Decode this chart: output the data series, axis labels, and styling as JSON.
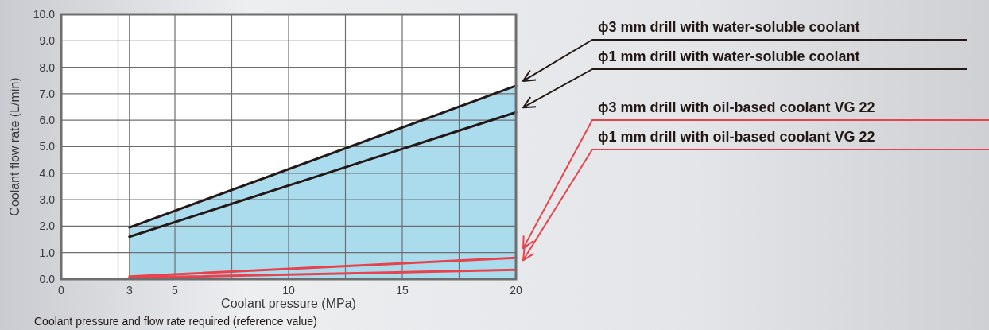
{
  "chart_data": {
    "type": "line",
    "xlabel": "Coolant pressure (MPa)",
    "ylabel": "Coolant flow rate (L/min)",
    "annotations": [
      "Coolant pressure and flow rate required (reference value)"
    ],
    "xlim": [
      0,
      20
    ],
    "ylim": [
      0,
      10
    ],
    "xticks": [
      0,
      {
        "value": 2.5,
        "label": null
      },
      3,
      5,
      {
        "value": 7.5,
        "label": null
      },
      10,
      {
        "value": 12.5,
        "label": null
      },
      15,
      {
        "value": 17.5,
        "label": null
      },
      20
    ],
    "yticks": [
      {
        "value": 0,
        "label": "0.0"
      },
      {
        "value": 1,
        "label": "1.0"
      },
      {
        "value": 2,
        "label": "2.0"
      },
      {
        "value": 3,
        "label": "3.0"
      },
      {
        "value": 4,
        "label": "4.0"
      },
      {
        "value": 5,
        "label": "5.0"
      },
      {
        "value": 6,
        "label": "6.0"
      },
      {
        "value": 7,
        "label": "7.0"
      },
      {
        "value": 8,
        "label": "8.0"
      },
      {
        "value": 9,
        "label": "9.0"
      },
      {
        "value": 10,
        "label": "10.0"
      }
    ],
    "grid": true,
    "legend": "right",
    "line_style": "solid",
    "x": [
      3,
      20
    ],
    "series": [
      {
        "name": "ϕ3 mm drill with water-soluble coolant",
        "color": "#231815",
        "values": [
          1.95,
          7.3
        ],
        "lower": [
          0,
          0
        ],
        "upper": [
          1.95,
          7.3
        ]
      },
      {
        "name": "ϕ1 mm drill with water-soluble coolant",
        "color": "#231815",
        "values": [
          1.6,
          6.3
        ]
      },
      {
        "name": "ϕ3 mm drill with oil-based coolant VG 22",
        "color": "#e8434d",
        "values": [
          0.1,
          0.8
        ]
      },
      {
        "name": "ϕ1 mm drill with oil-based coolant VG 22",
        "color": "#e8434d",
        "values": [
          0.05,
          0.35
        ]
      }
    ]
  }
}
